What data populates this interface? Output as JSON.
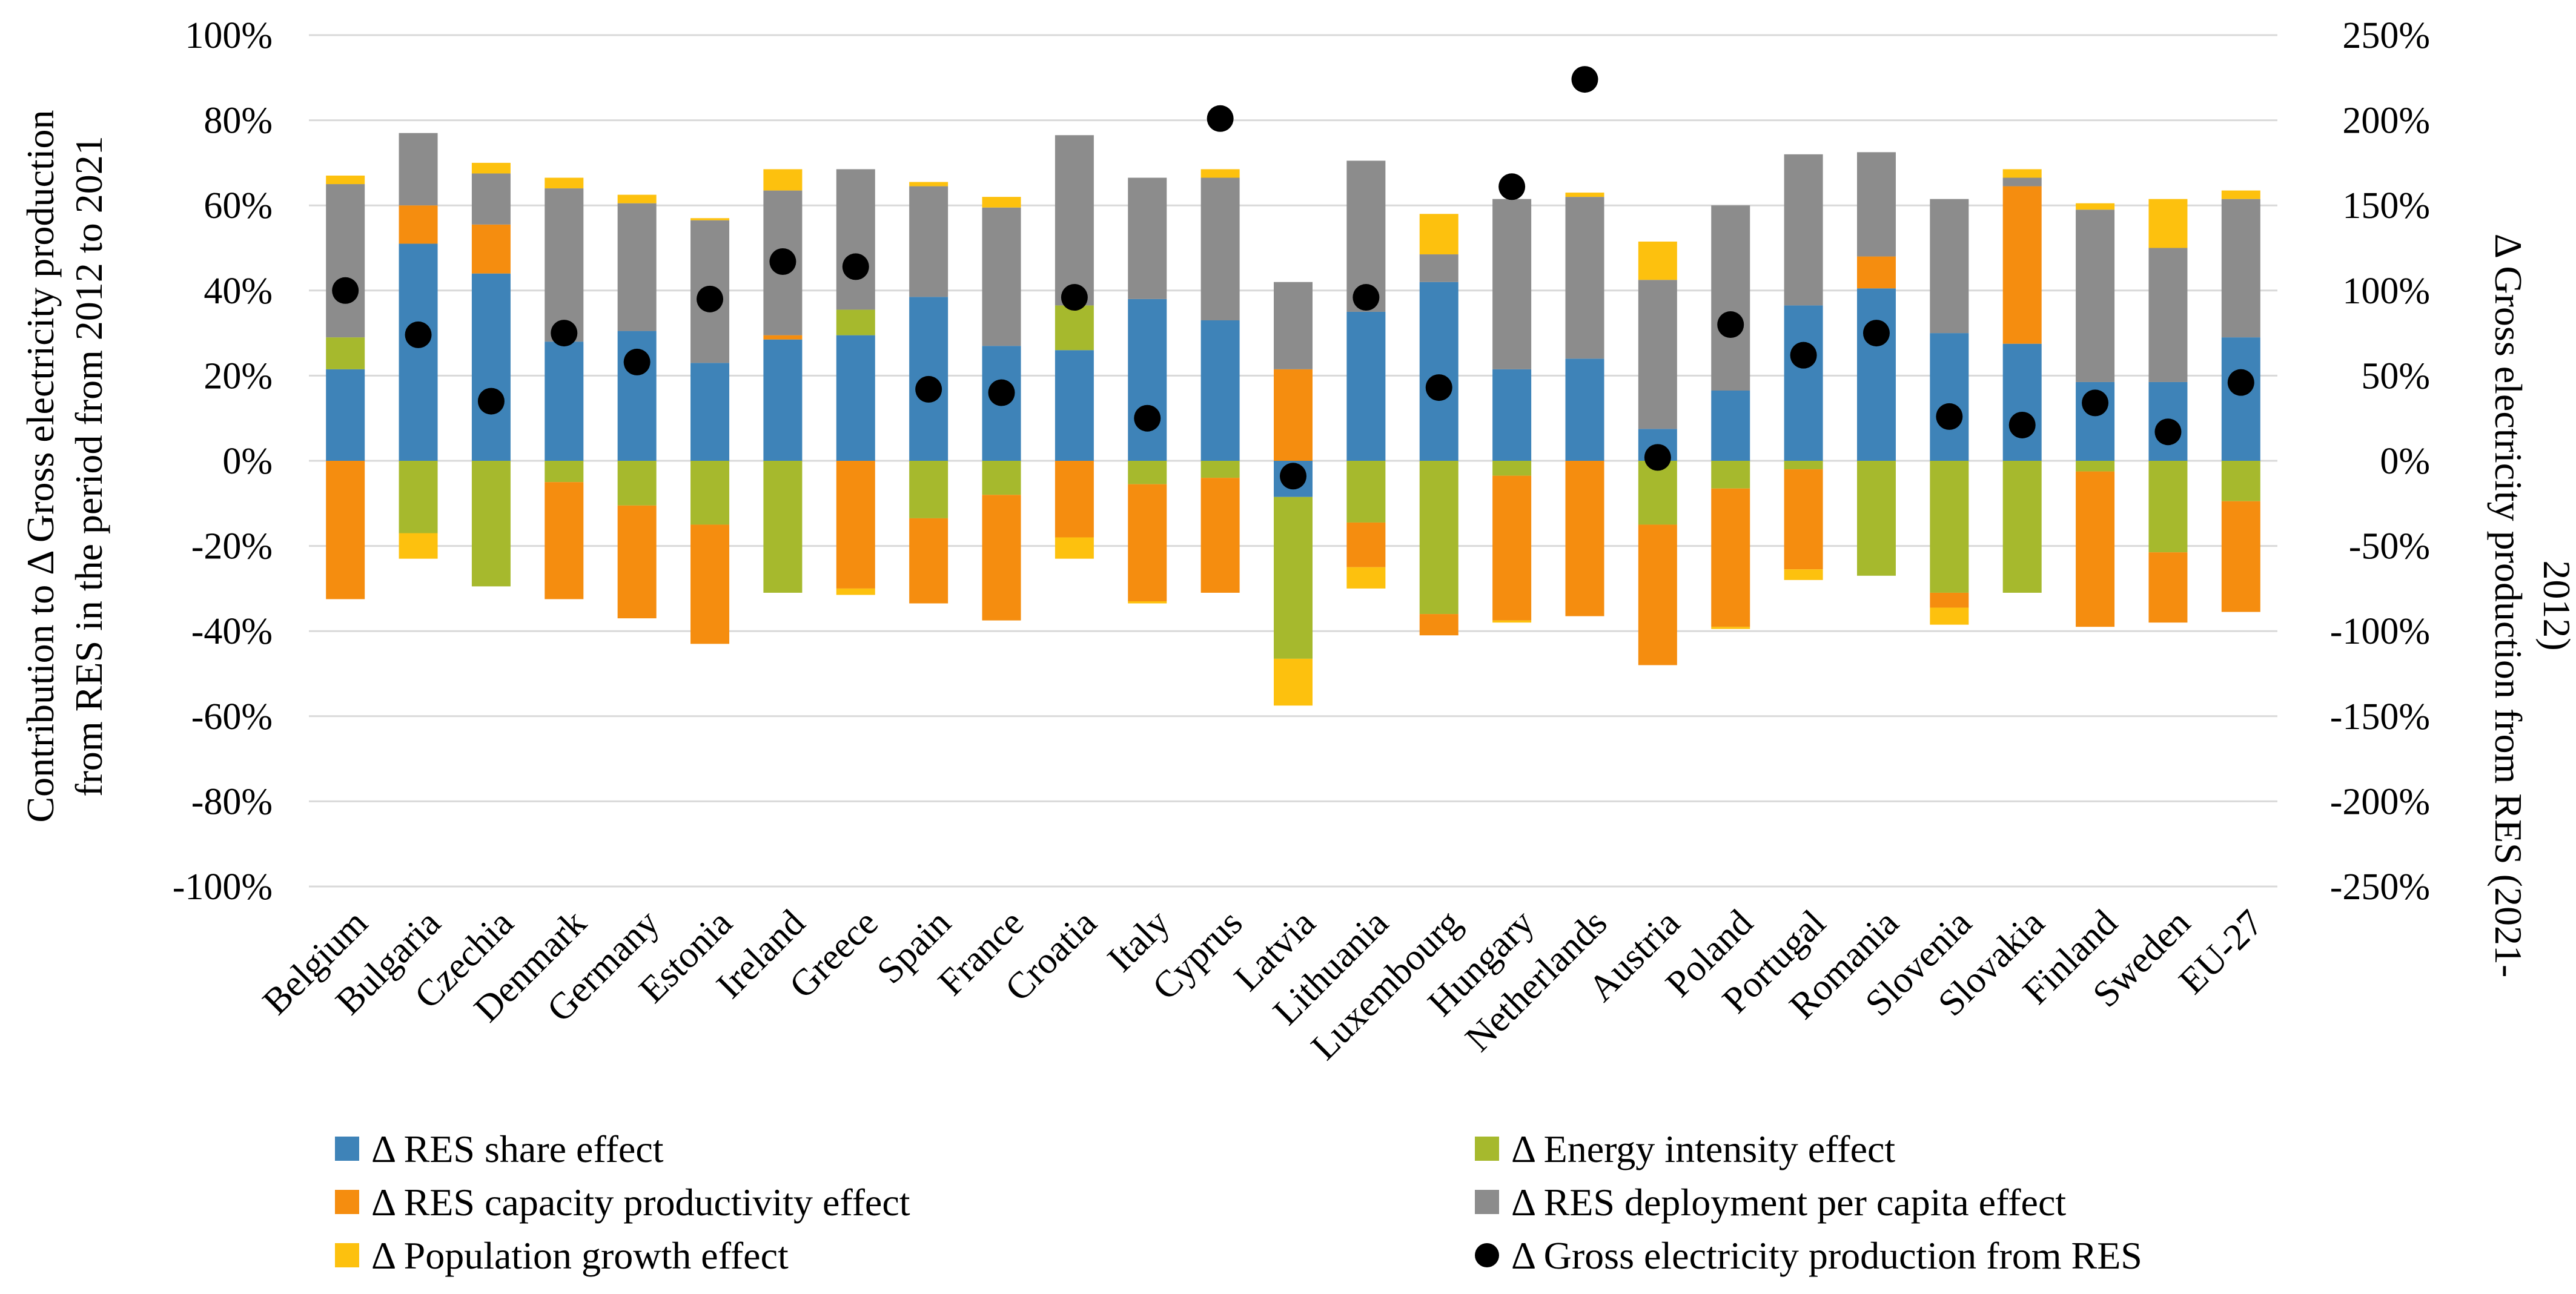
{
  "chart_data": {
    "type": "bar",
    "stacked": true,
    "categories": [
      "Belgium",
      "Bulgaria",
      "Czechia",
      "Denmark",
      "Germany",
      "Estonia",
      "Ireland",
      "Greece",
      "Spain",
      "France",
      "Croatia",
      "Italy",
      "Cyprus",
      "Latvia",
      "Lithuania",
      "Luxembourg",
      "Hungary",
      "Netherlands",
      "Austria",
      "Poland",
      "Portugal",
      "Romania",
      "Slovenia",
      "Slovakia",
      "Finland",
      "Sweden",
      "EU-27"
    ],
    "series": [
      {
        "name": "Δ RES share effect",
        "color": "#3e83b8",
        "axis": "left",
        "values": [
          21.5,
          51,
          44,
          28,
          30.5,
          23,
          28.5,
          29.5,
          38.5,
          27,
          26,
          38,
          33,
          -8.5,
          35,
          42,
          21.5,
          24,
          7.5,
          16.5,
          36.5,
          40.5,
          30,
          27.5,
          18.5,
          18.5,
          29
        ]
      },
      {
        "name": "Δ Energy intensity effect",
        "color": "#a6b92d",
        "axis": "left",
        "values": [
          7.5,
          -17,
          -29.5,
          -5,
          -10.5,
          -15,
          -31,
          6,
          -13.5,
          -8,
          10.5,
          -5.5,
          -4,
          -38,
          -14.5,
          -36,
          -3.5,
          0,
          -15,
          -6.5,
          -2,
          -27,
          -31,
          -31,
          -2.5,
          -21.5,
          -9.5
        ]
      },
      {
        "name": "Δ RES capacity productivity effect",
        "color": "#f58d0f",
        "axis": "left",
        "values": [
          -32.5,
          9,
          11.5,
          -27.5,
          -26.5,
          -28,
          1,
          -30,
          -20,
          -29.5,
          -18,
          -27.5,
          -27,
          21.5,
          -10.5,
          -5,
          -34,
          -36.5,
          -33,
          -32.5,
          -23.5,
          7.5,
          -3.5,
          37,
          -36.5,
          -16.5,
          -26
        ]
      },
      {
        "name": "Δ RES deployment per capita effect",
        "color": "#8c8c8c",
        "axis": "left",
        "values": [
          36,
          17,
          12,
          36,
          30,
          33.5,
          34,
          33,
          26,
          32.5,
          40,
          28.5,
          33.5,
          20.5,
          35.5,
          6.5,
          40,
          38,
          35,
          43.5,
          35.5,
          24.5,
          31.5,
          2,
          40.5,
          31.5,
          32.5
        ]
      },
      {
        "name": "Δ Population growth effect",
        "color": "#fdc10e",
        "axis": "left",
        "values": [
          2,
          -6,
          2.5,
          2.5,
          2,
          0.5,
          5,
          -1.5,
          1,
          2.5,
          -5,
          -0.5,
          2,
          -11,
          -5,
          9.5,
          -0.5,
          1,
          9,
          -0.5,
          -2.5,
          0,
          -4,
          2,
          1.5,
          11.5,
          2
        ]
      },
      {
        "name": "Δ Gross electricity production from RES",
        "color": "#000000",
        "axis": "right",
        "marker": "dot",
        "values": [
          100,
          74,
          35,
          75,
          58,
          95,
          117,
          114,
          42,
          40,
          96,
          25,
          201,
          -9,
          96,
          43,
          161,
          224,
          2,
          80,
          62,
          75,
          26,
          21,
          34,
          17,
          46
        ]
      }
    ],
    "y_left": {
      "label_line1": "Contribution to Δ Gross electricity production",
      "label_line2": "from RES in the period from 2012 to 2021",
      "min": -100,
      "max": 100,
      "step": 20,
      "tick_suffix": "%"
    },
    "y_right": {
      "label_line1": "Δ Gross electricity production from RES (2021-",
      "label_line2": "2012)",
      "min": -250,
      "max": 250,
      "step": 50,
      "tick_suffix": "%"
    },
    "grid": true,
    "legend": "bottom",
    "legend_order": [
      0,
      1,
      2,
      3,
      4,
      5
    ]
  }
}
